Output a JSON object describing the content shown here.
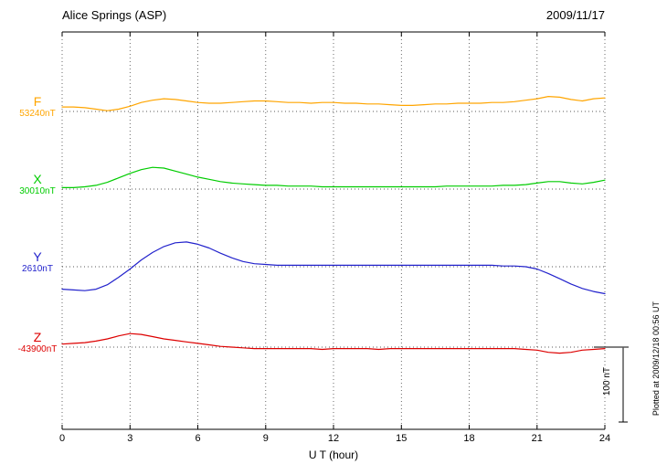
{
  "header": {
    "title": "Alice Springs (ASP)",
    "date": "2009/11/17"
  },
  "footer": {
    "plotted_at": "Plotted at 2009/12/18 00:56 UT"
  },
  "scale_bar": {
    "label": "100 nT",
    "value_nT": 100
  },
  "chart_data": {
    "type": "line",
    "title": "Alice Springs (ASP)",
    "date": "2009/11/17",
    "xlabel": "U T (hour)",
    "x_range": [
      0,
      24
    ],
    "x_ticks": [
      0,
      3,
      6,
      9,
      12,
      15,
      18,
      21,
      24
    ],
    "grid": "dotted vertical at each 3h tick, dotted horizontal baseline per trace",
    "scale_bar_nT": 100,
    "y_encoding": "offset in nT from each channel baseline",
    "series": [
      {
        "name": "F",
        "baseline_label": "53240nT",
        "baseline_nT": 53240,
        "color": "#ffa500",
        "points": [
          [
            0,
            6
          ],
          [
            0.5,
            6
          ],
          [
            1,
            5
          ],
          [
            1.5,
            3
          ],
          [
            2,
            1
          ],
          [
            2.5,
            3
          ],
          [
            3,
            7
          ],
          [
            3.5,
            12
          ],
          [
            4,
            15
          ],
          [
            4.5,
            17
          ],
          [
            5,
            16
          ],
          [
            5.5,
            14
          ],
          [
            6,
            12
          ],
          [
            6.5,
            11
          ],
          [
            7,
            11
          ],
          [
            7.5,
            12
          ],
          [
            8,
            13
          ],
          [
            8.5,
            14
          ],
          [
            9,
            14
          ],
          [
            9.5,
            13
          ],
          [
            10,
            12
          ],
          [
            10.5,
            12
          ],
          [
            11,
            11
          ],
          [
            11.5,
            12
          ],
          [
            12,
            12
          ],
          [
            12.5,
            11
          ],
          [
            13,
            11
          ],
          [
            13.5,
            10
          ],
          [
            14,
            10
          ],
          [
            14.5,
            9
          ],
          [
            15,
            8
          ],
          [
            15.5,
            8
          ],
          [
            16,
            9
          ],
          [
            16.5,
            10
          ],
          [
            17,
            10
          ],
          [
            17.5,
            11
          ],
          [
            18,
            11
          ],
          [
            18.5,
            11
          ],
          [
            19,
            12
          ],
          [
            19.5,
            12
          ],
          [
            20,
            13
          ],
          [
            20.5,
            15
          ],
          [
            21,
            17
          ],
          [
            21.5,
            20
          ],
          [
            22,
            19
          ],
          [
            22.5,
            16
          ],
          [
            23,
            14
          ],
          [
            23.5,
            17
          ],
          [
            24,
            18
          ]
        ]
      },
      {
        "name": "X",
        "baseline_label": "30010nT",
        "baseline_nT": 30010,
        "color": "#00cc00",
        "points": [
          [
            0,
            2
          ],
          [
            0.5,
            2
          ],
          [
            1,
            3
          ],
          [
            1.5,
            5
          ],
          [
            2,
            9
          ],
          [
            2.5,
            15
          ],
          [
            3,
            21
          ],
          [
            3.5,
            26
          ],
          [
            4,
            29
          ],
          [
            4.5,
            28
          ],
          [
            5,
            24
          ],
          [
            5.5,
            20
          ],
          [
            6,
            16
          ],
          [
            6.5,
            13
          ],
          [
            7,
            10
          ],
          [
            7.5,
            8
          ],
          [
            8,
            7
          ],
          [
            8.5,
            6
          ],
          [
            9,
            5
          ],
          [
            9.5,
            5
          ],
          [
            10,
            4
          ],
          [
            10.5,
            4
          ],
          [
            11,
            4
          ],
          [
            11.5,
            3
          ],
          [
            12,
            3
          ],
          [
            12.5,
            3
          ],
          [
            13,
            3
          ],
          [
            13.5,
            3
          ],
          [
            14,
            3
          ],
          [
            14.5,
            3
          ],
          [
            15,
            3
          ],
          [
            15.5,
            3
          ],
          [
            16,
            3
          ],
          [
            16.5,
            3
          ],
          [
            17,
            4
          ],
          [
            17.5,
            4
          ],
          [
            18,
            4
          ],
          [
            18.5,
            4
          ],
          [
            19,
            4
          ],
          [
            19.5,
            5
          ],
          [
            20,
            5
          ],
          [
            20.5,
            6
          ],
          [
            21,
            8
          ],
          [
            21.5,
            10
          ],
          [
            22,
            10
          ],
          [
            22.5,
            8
          ],
          [
            23,
            7
          ],
          [
            23.5,
            9
          ],
          [
            24,
            12
          ]
        ]
      },
      {
        "name": "Y",
        "baseline_label": "2610nT",
        "baseline_nT": 2610,
        "color": "#2222cc",
        "points": [
          [
            0,
            -30
          ],
          [
            0.5,
            -31
          ],
          [
            1,
            -32
          ],
          [
            1.5,
            -30
          ],
          [
            2,
            -24
          ],
          [
            2.5,
            -14
          ],
          [
            3,
            -3
          ],
          [
            3.5,
            9
          ],
          [
            4,
            19
          ],
          [
            4.5,
            27
          ],
          [
            5,
            32
          ],
          [
            5.5,
            33
          ],
          [
            6,
            30
          ],
          [
            6.5,
            25
          ],
          [
            7,
            18
          ],
          [
            7.5,
            12
          ],
          [
            8,
            7
          ],
          [
            8.5,
            4
          ],
          [
            9,
            3
          ],
          [
            9.5,
            2
          ],
          [
            10,
            2
          ],
          [
            10.5,
            2
          ],
          [
            11,
            2
          ],
          [
            11.5,
            2
          ],
          [
            12,
            2
          ],
          [
            12.5,
            2
          ],
          [
            13,
            2
          ],
          [
            13.5,
            2
          ],
          [
            14,
            2
          ],
          [
            14.5,
            2
          ],
          [
            15,
            2
          ],
          [
            15.5,
            2
          ],
          [
            16,
            2
          ],
          [
            16.5,
            2
          ],
          [
            17,
            2
          ],
          [
            17.5,
            2
          ],
          [
            18,
            2
          ],
          [
            18.5,
            2
          ],
          [
            19,
            2
          ],
          [
            19.5,
            1
          ],
          [
            20,
            1
          ],
          [
            20.5,
            0
          ],
          [
            21,
            -3
          ],
          [
            21.5,
            -9
          ],
          [
            22,
            -16
          ],
          [
            22.5,
            -23
          ],
          [
            23,
            -29
          ],
          [
            23.5,
            -33
          ],
          [
            24,
            -36
          ]
        ]
      },
      {
        "name": "Z",
        "baseline_label": "-43900nT",
        "baseline_nT": -43900,
        "color": "#dd0000",
        "points": [
          [
            0,
            4
          ],
          [
            0.5,
            5
          ],
          [
            1,
            6
          ],
          [
            1.5,
            8
          ],
          [
            2,
            11
          ],
          [
            2.5,
            15
          ],
          [
            3,
            18
          ],
          [
            3.5,
            17
          ],
          [
            4,
            14
          ],
          [
            4.5,
            11
          ],
          [
            5,
            9
          ],
          [
            5.5,
            7
          ],
          [
            6,
            5
          ],
          [
            6.5,
            3
          ],
          [
            7,
            1
          ],
          [
            7.5,
            0
          ],
          [
            8,
            -1
          ],
          [
            8.5,
            -2
          ],
          [
            9,
            -2
          ],
          [
            9.5,
            -2
          ],
          [
            10,
            -2
          ],
          [
            10.5,
            -2
          ],
          [
            11,
            -2
          ],
          [
            11.5,
            -3
          ],
          [
            12,
            -2
          ],
          [
            12.5,
            -2
          ],
          [
            13,
            -2
          ],
          [
            13.5,
            -2
          ],
          [
            14,
            -3
          ],
          [
            14.5,
            -2
          ],
          [
            15,
            -2
          ],
          [
            15.5,
            -2
          ],
          [
            16,
            -2
          ],
          [
            16.5,
            -2
          ],
          [
            17,
            -2
          ],
          [
            17.5,
            -2
          ],
          [
            18,
            -2
          ],
          [
            18.5,
            -2
          ],
          [
            19,
            -2
          ],
          [
            19.5,
            -2
          ],
          [
            20,
            -2
          ],
          [
            20.5,
            -3
          ],
          [
            21,
            -4
          ],
          [
            21.5,
            -7
          ],
          [
            22,
            -8
          ],
          [
            22.5,
            -7
          ],
          [
            23,
            -4
          ],
          [
            23.5,
            -3
          ],
          [
            24,
            -2
          ]
        ]
      }
    ]
  }
}
